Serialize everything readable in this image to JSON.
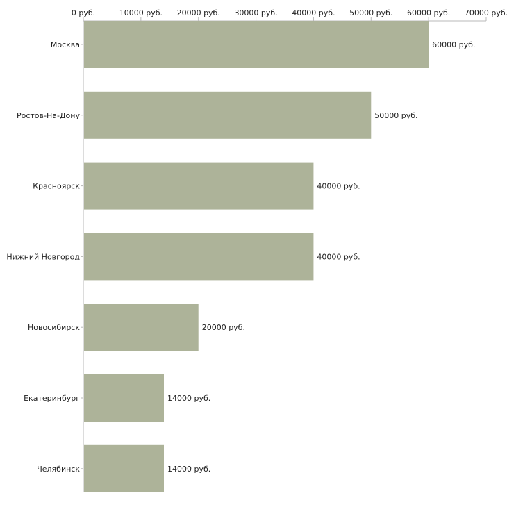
{
  "chart_data": {
    "type": "bar",
    "orientation": "horizontal",
    "title": "",
    "xlabel": "",
    "ylabel": "",
    "xlim": [
      0,
      70000
    ],
    "x_tick_values": [
      0,
      10000,
      20000,
      30000,
      40000,
      50000,
      60000,
      70000
    ],
    "x_tick_labels": [
      "0 руб.",
      "10000 руб.",
      "20000 руб.",
      "30000 руб.",
      "40000 руб.",
      "50000 руб.",
      "60000 руб.",
      "70000 руб."
    ],
    "axis_position": "top",
    "grid": false,
    "legend": "none",
    "categories": [
      "Москва",
      "Ростов-На-Дону",
      "Красноярск",
      "Нижний Новгород",
      "Новосибирск",
      "Екатеринбург",
      "Челябинск"
    ],
    "values": [
      60000,
      50000,
      40000,
      40000,
      20000,
      14000,
      14000
    ],
    "value_labels": [
      "60000 руб.",
      "50000 руб.",
      "40000 руб.",
      "40000 руб.",
      "20000 руб.",
      "14000 руб.",
      "14000 руб."
    ],
    "colors": {
      "bar": "#adb399",
      "axis": "#b8b8b8",
      "text": "#222222"
    }
  }
}
